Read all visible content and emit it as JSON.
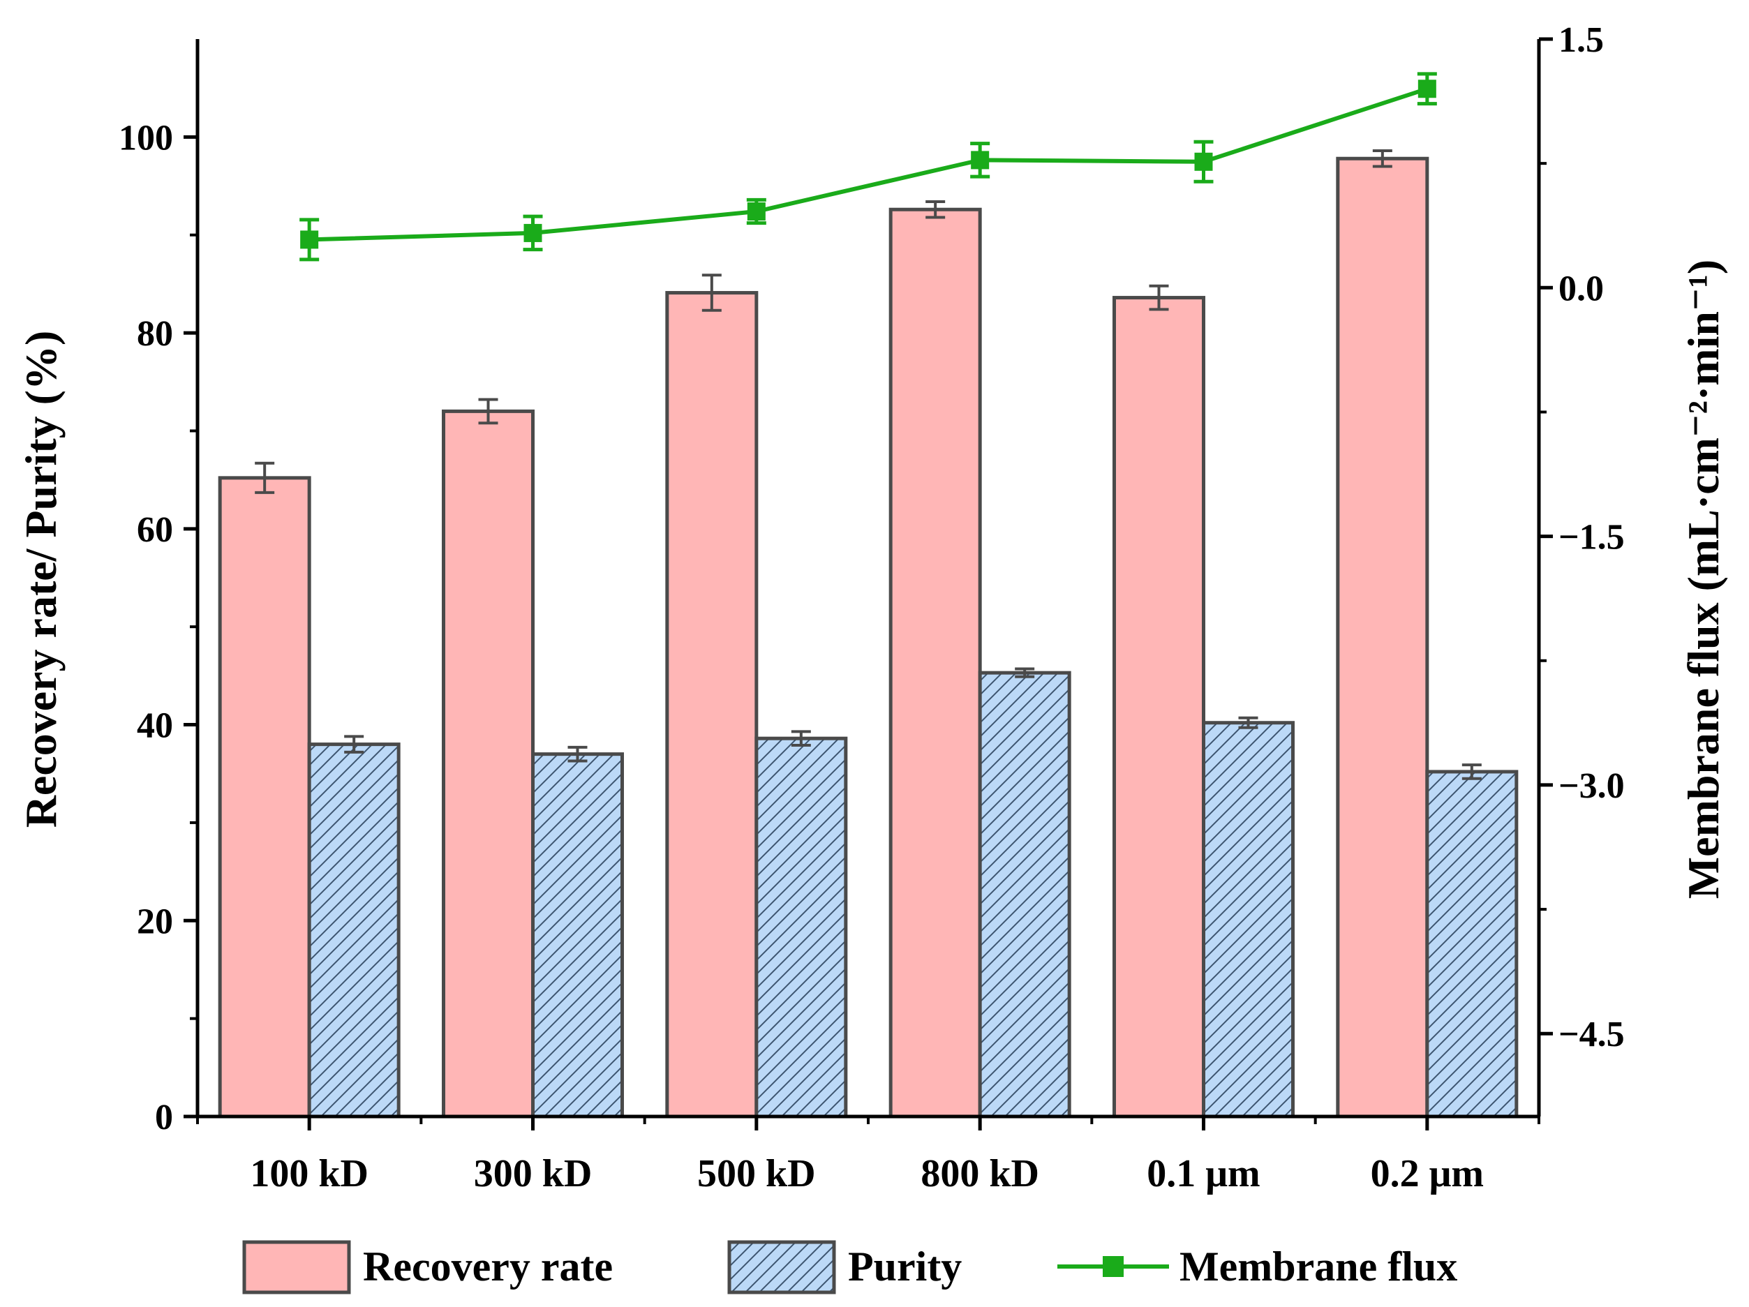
{
  "chart_data": {
    "type": "bar",
    "categories": [
      "100 kD",
      "300 kD",
      "500 kD",
      "800 kD",
      "0.1 μm",
      "0.2 μm"
    ],
    "series": [
      {
        "name": "Recovery rate",
        "axis": "left",
        "type": "bar",
        "pattern": "solid",
        "values": [
          65.2,
          72.0,
          84.1,
          92.6,
          83.6,
          97.8
        ],
        "errors": [
          1.5,
          1.2,
          1.8,
          0.8,
          1.2,
          0.8
        ]
      },
      {
        "name": "Purity",
        "axis": "left",
        "type": "bar",
        "pattern": "hatch",
        "values": [
          38.0,
          37.0,
          38.6,
          45.3,
          40.2,
          35.2
        ],
        "errors": [
          0.8,
          0.7,
          0.7,
          0.4,
          0.5,
          0.7
        ]
      },
      {
        "name": "Membrane flux",
        "axis": "right",
        "type": "line",
        "marker": "square",
        "values": [
          0.29,
          0.33,
          0.46,
          0.77,
          0.76,
          1.2
        ],
        "errors": [
          0.12,
          0.1,
          0.07,
          0.1,
          0.12,
          0.09
        ]
      }
    ],
    "ylabel": "Recovery rate/ Purity (%)",
    "ylim": [
      0,
      110
    ],
    "yticks": [
      0,
      20,
      40,
      60,
      80,
      100
    ],
    "ylabel_right": "Membrane flux (mL·cm⁻²·min⁻¹)",
    "ylim_right": [
      -5.0,
      1.5
    ],
    "yticks_right": [
      1.5,
      0.0,
      -1.5,
      -3.0,
      -4.5
    ],
    "ytick_labels_right": [
      "1.5",
      "0.0",
      "−1.5",
      "−3.0",
      "−4.5"
    ],
    "legend": [
      "Recovery rate",
      "Purity",
      "Membrane flux"
    ],
    "legend_position": "bottom",
    "grid": false
  },
  "colors": {
    "recovery": "#ffb6b6",
    "purity": "#bcd9f7",
    "flux": "#1aab1a",
    "outline": "#4a4a4a"
  }
}
